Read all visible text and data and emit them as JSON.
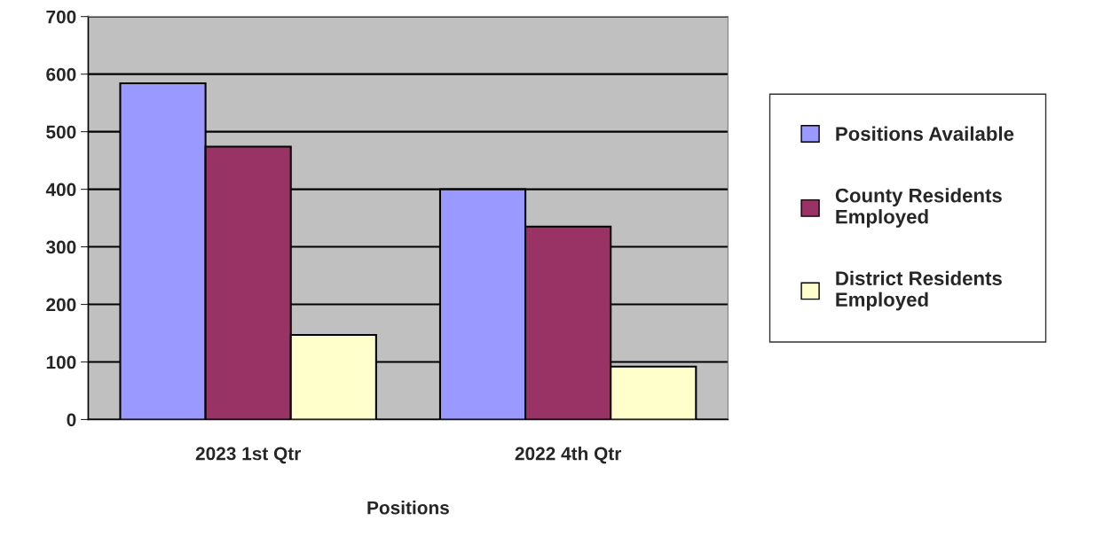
{
  "chart_data": {
    "type": "bar",
    "xlabel": "Positions",
    "categories": [
      "2023 1st Qtr",
      "2022 4th Qtr"
    ],
    "series": [
      {
        "name": "Positions Available",
        "color": "#9999ff",
        "values": [
          584,
          400
        ]
      },
      {
        "name": "County Residents\nEmployed",
        "color": "#993366",
        "values": [
          474,
          335
        ]
      },
      {
        "name": "District Residents\nEmployed",
        "color": "#ffffcc",
        "values": [
          147,
          92
        ]
      }
    ],
    "ylim": [
      0,
      700
    ],
    "yticks": [
      0,
      100,
      200,
      300,
      400,
      500,
      600,
      700
    ],
    "grid": "y",
    "legend": "right"
  }
}
